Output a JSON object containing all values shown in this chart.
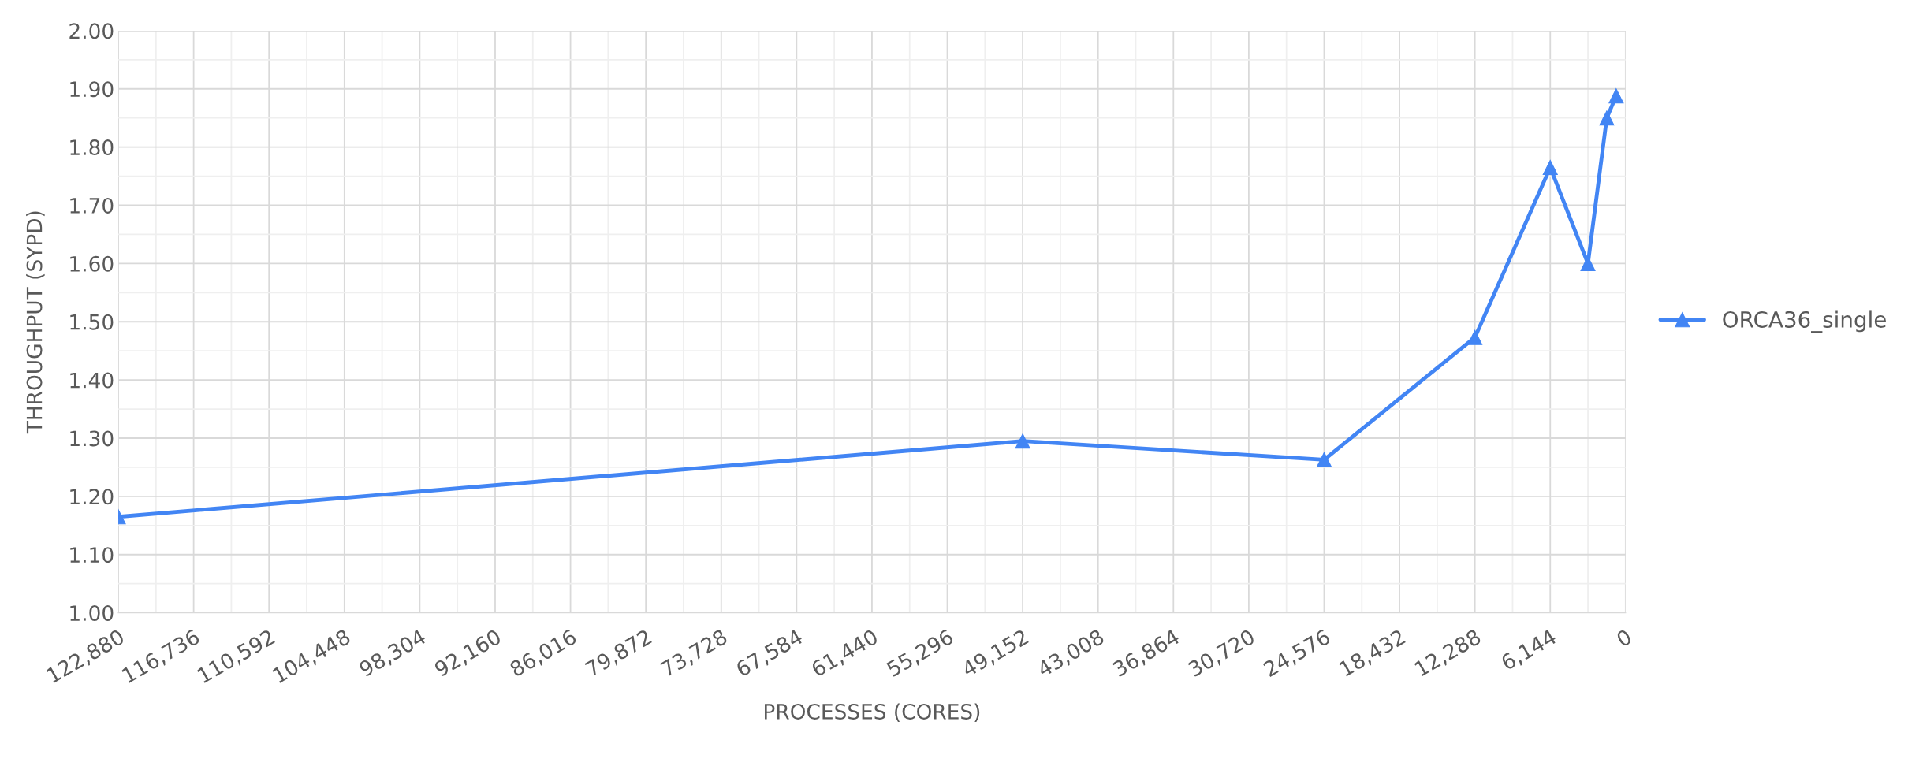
{
  "chart_data": {
    "type": "line",
    "xlabel": "PROCESSES (CORES)",
    "ylabel": "THROUGHPUT (SYPD)",
    "x": [
      122880,
      49152,
      24576,
      12288,
      6144,
      3072,
      1536,
      768
    ],
    "series": [
      {
        "name": "ORCA36_single",
        "color": "#4285f4",
        "values": [
          1.165,
          1.295,
          1.263,
          1.473,
          1.765,
          1.6,
          1.85,
          1.888
        ]
      }
    ],
    "xlim": [
      122880,
      0
    ],
    "xticks": [
      {
        "value": 122880,
        "label": "122,880"
      },
      {
        "value": 116736,
        "label": "116,736"
      },
      {
        "value": 110592,
        "label": "110,592"
      },
      {
        "value": 104448,
        "label": "104,448"
      },
      {
        "value": 98304,
        "label": "98,304"
      },
      {
        "value": 92160,
        "label": "92,160"
      },
      {
        "value": 86016,
        "label": "86,016"
      },
      {
        "value": 79872,
        "label": "79,872"
      },
      {
        "value": 73728,
        "label": "73,728"
      },
      {
        "value": 67584,
        "label": "67,584"
      },
      {
        "value": 61440,
        "label": "61,440"
      },
      {
        "value": 55296,
        "label": "55,296"
      },
      {
        "value": 49152,
        "label": "49,152"
      },
      {
        "value": 43008,
        "label": "43,008"
      },
      {
        "value": 36864,
        "label": "36,864"
      },
      {
        "value": 30720,
        "label": "30,720"
      },
      {
        "value": 24576,
        "label": "24,576"
      },
      {
        "value": 18432,
        "label": "18,432"
      },
      {
        "value": 12288,
        "label": "12,288"
      },
      {
        "value": 6144,
        "label": "6,144"
      },
      0
    ],
    "ylim": [
      1.0,
      2.0
    ],
    "yticks": [
      {
        "value": 1.0,
        "label": "1.00"
      },
      {
        "value": 1.1,
        "label": "1.10"
      },
      {
        "value": 1.2,
        "label": "1.20"
      },
      {
        "value": 1.3,
        "label": "1.30"
      },
      {
        "value": 1.4,
        "label": "1.40"
      },
      {
        "value": 1.5,
        "label": "1.50"
      },
      {
        "value": 1.6,
        "label": "1.60"
      },
      {
        "value": 1.7,
        "label": "1.70"
      },
      {
        "value": 1.8,
        "label": "1.80"
      },
      {
        "value": 1.9,
        "label": "1.90"
      },
      {
        "value": 2.0,
        "label": "2.00"
      }
    ],
    "grid": true,
    "legend": "right",
    "marker": "triangle",
    "line_style": "solid"
  }
}
